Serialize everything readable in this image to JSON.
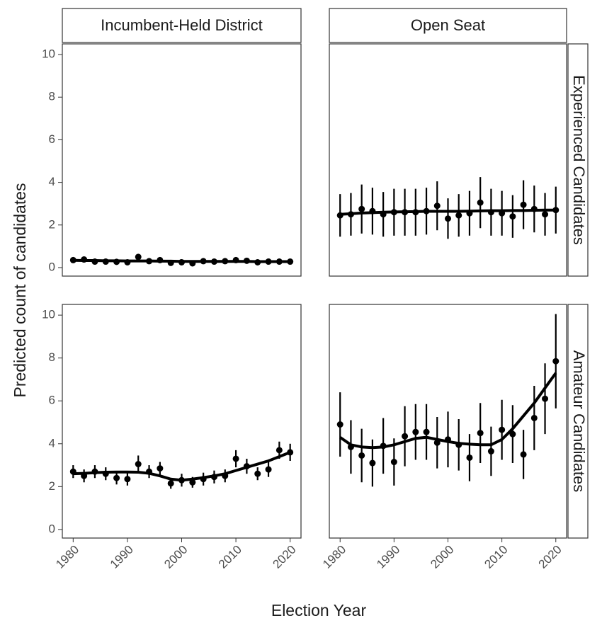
{
  "chart_data": {
    "type": "facet",
    "xlabel": "Election Year",
    "ylabel": "Predicted count of candidates",
    "columns": [
      "Incumbent-Held District",
      "Open Seat"
    ],
    "x": [
      1980,
      1982,
      1984,
      1986,
      1988,
      1990,
      1992,
      1994,
      1996,
      1998,
      2000,
      2002,
      2004,
      2006,
      2008,
      2010,
      2012,
      2014,
      2016,
      2018,
      2020
    ],
    "xlim": [
      1978,
      2022
    ],
    "xticks": [
      1980,
      1990,
      2000,
      2010,
      2020
    ],
    "ylim": [
      -0.4,
      10.5
    ],
    "yticks": [
      0,
      2,
      4,
      6,
      8,
      10
    ],
    "color": "#000000",
    "rows": [
      {
        "label": "Experienced Candidates",
        "panels": [
          {
            "values": [
              0.35,
              0.38,
              0.28,
              0.28,
              0.27,
              0.25,
              0.5,
              0.3,
              0.35,
              0.22,
              0.25,
              0.2,
              0.3,
              0.28,
              0.3,
              0.35,
              0.32,
              0.25,
              0.28,
              0.28,
              0.28
            ],
            "errors": [
              0.1,
              0.1,
              0.08,
              0.08,
              0.08,
              0.08,
              0.12,
              0.08,
              0.1,
              0.07,
              0.08,
              0.07,
              0.08,
              0.08,
              0.08,
              0.1,
              0.09,
              0.07,
              0.08,
              0.08,
              0.08
            ],
            "smooth": [
              0.34,
              0.33,
              0.33,
              0.32,
              0.32,
              0.31,
              0.31,
              0.31,
              0.3,
              0.3,
              0.29,
              0.29,
              0.29,
              0.29,
              0.29,
              0.29,
              0.29,
              0.28,
              0.28,
              0.28,
              0.28
            ]
          },
          {
            "values": [
              2.45,
              2.5,
              2.75,
              2.65,
              2.5,
              2.6,
              2.6,
              2.6,
              2.65,
              2.9,
              2.3,
              2.45,
              2.55,
              3.05,
              2.6,
              2.55,
              2.4,
              2.95,
              2.75,
              2.5,
              2.7
            ],
            "errors": [
              1.0,
              1.0,
              1.15,
              1.1,
              1.05,
              1.1,
              1.1,
              1.1,
              1.1,
              1.15,
              0.95,
              1.0,
              1.05,
              1.2,
              1.1,
              1.05,
              1.0,
              1.15,
              1.1,
              1.0,
              1.1
            ],
            "smooth": [
              2.5,
              2.53,
              2.56,
              2.58,
              2.6,
              2.61,
              2.62,
              2.63,
              2.64,
              2.64,
              2.64,
              2.64,
              2.65,
              2.66,
              2.67,
              2.67,
              2.68,
              2.68,
              2.69,
              2.7,
              2.7
            ]
          }
        ]
      },
      {
        "label": "Amateur Candidates",
        "panels": [
          {
            "values": [
              2.7,
              2.5,
              2.7,
              2.6,
              2.4,
              2.35,
              3.05,
              2.7,
              2.85,
              2.15,
              2.3,
              2.2,
              2.35,
              2.45,
              2.5,
              3.3,
              2.95,
              2.6,
              2.8,
              3.7,
              3.6
            ],
            "errors": [
              0.3,
              0.3,
              0.3,
              0.3,
              0.3,
              0.3,
              0.4,
              0.3,
              0.3,
              0.25,
              0.3,
              0.25,
              0.3,
              0.3,
              0.3,
              0.4,
              0.35,
              0.3,
              0.35,
              0.4,
              0.4
            ],
            "smooth": [
              2.6,
              2.62,
              2.65,
              2.67,
              2.68,
              2.68,
              2.67,
              2.62,
              2.5,
              2.35,
              2.3,
              2.35,
              2.42,
              2.5,
              2.6,
              2.75,
              2.9,
              3.05,
              3.2,
              3.4,
              3.6
            ]
          },
          {
            "values": [
              4.9,
              3.85,
              3.45,
              3.1,
              3.9,
              3.15,
              4.35,
              4.55,
              4.55,
              4.05,
              4.2,
              3.95,
              3.35,
              4.5,
              3.65,
              4.65,
              4.45,
              3.5,
              5.2,
              6.1,
              7.85
            ],
            "errors": [
              1.5,
              1.25,
              1.25,
              1.1,
              1.3,
              1.1,
              1.4,
              1.3,
              1.3,
              1.2,
              1.3,
              1.2,
              1.1,
              1.4,
              1.15,
              1.4,
              1.35,
              1.15,
              1.5,
              1.65,
              2.2
            ],
            "smooth": [
              4.3,
              3.95,
              3.85,
              3.82,
              3.85,
              3.95,
              4.1,
              4.25,
              4.3,
              4.2,
              4.1,
              4.02,
              3.98,
              3.95,
              3.95,
              4.2,
              4.7,
              5.3,
              5.9,
              6.6,
              7.3
            ]
          }
        ]
      }
    ]
  }
}
